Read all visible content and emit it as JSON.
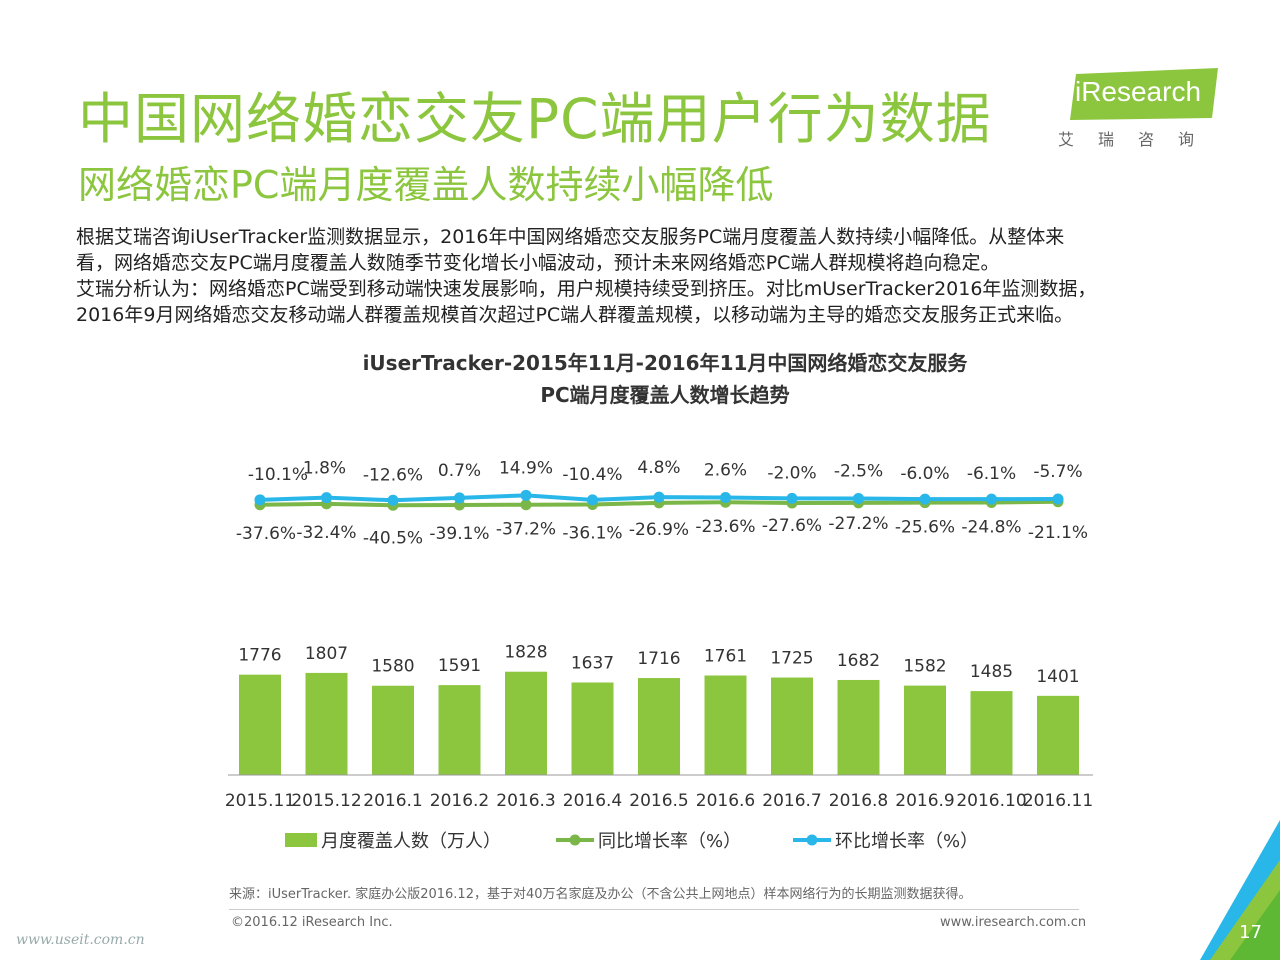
{
  "header": {
    "title": "中国网络婚恋交友PC端用户行为数据",
    "subtitle": "网络婚恋PC端月度覆盖人数持续小幅降低"
  },
  "logo": {
    "text": "iResearch",
    "cn": "艾瑞咨询"
  },
  "paragraph": [
    "根据艾瑞咨询iUserTracker监测数据显示，2016年中国网络婚恋交友服务PC端月度覆盖人数持续小幅降低。从整体来",
    "看，网络婚恋交友PC端月度覆盖人数随季节变化增长小幅波动，预计未来网络婚恋PC端人群规模将趋向稳定。",
    "艾瑞分析认为：网络婚恋PC端受到移动端快速发展影响，用户规模持续受到挤压。对比mUserTracker2016年监测数据，",
    "2016年9月网络婚恋交友移动端人群覆盖规模首次超过PC端人群覆盖规模，以移动端为主导的婚恋交友服务正式来临。"
  ],
  "colors": {
    "accent": "#8cc63f",
    "bar": "#8cc63f",
    "yoy_line": "#7ab648",
    "mom_line": "#29b6e8",
    "corner_blue": "#29b6e8"
  },
  "chart_data": {
    "type": "bar",
    "title_line1": "iUserTracker-2015年11月-2016年11月中国网络婚恋交友服务",
    "title_line2": "PC端月度覆盖人数增长趋势",
    "categories": [
      "2015.11",
      "2015.12",
      "2016.1",
      "2016.2",
      "2016.3",
      "2016.4",
      "2016.5",
      "2016.6",
      "2016.7",
      "2016.8",
      "2016.9",
      "2016.10",
      "2016.11"
    ],
    "series": [
      {
        "name": "月度覆盖人数（万人）",
        "type": "bar",
        "values": [
          1776,
          1807,
          1580,
          1591,
          1828,
          1637,
          1716,
          1761,
          1725,
          1682,
          1582,
          1485,
          1401
        ],
        "labels": [
          "1776",
          "1807",
          "1580",
          "1591",
          "1828",
          "1637",
          "1716",
          "1761",
          "1725",
          "1682",
          "1582",
          "1485",
          "1401"
        ]
      },
      {
        "name": "同比增长率（%）",
        "type": "line",
        "values": [
          -37.6,
          -32.4,
          -40.5,
          -39.1,
          -37.2,
          -36.1,
          -26.9,
          -23.6,
          -27.6,
          -27.2,
          -25.6,
          -24.8,
          -21.1
        ],
        "labels": [
          "-37.6%",
          "-32.4%",
          "-40.5%",
          "-39.1%",
          "-37.2%",
          "-36.1%",
          "-26.9%",
          "-23.6%",
          "-27.6%",
          "-27.2%",
          "-25.6%",
          "-24.8%",
          "-21.1%"
        ]
      },
      {
        "name": "环比增长率（%）",
        "type": "line",
        "values": [
          -10.1,
          1.8,
          -12.6,
          0.7,
          14.9,
          -10.4,
          4.8,
          2.6,
          -2.0,
          -2.5,
          -6.0,
          -6.1,
          -5.7
        ],
        "labels": [
          "-10.1%",
          "1.8%",
          "-12.6%",
          "0.7%",
          "14.9%",
          "-10.4%",
          "4.8%",
          "2.6%",
          "-2.0%",
          "-2.5%",
          "-6.0%",
          "-6.1%",
          "-5.7%"
        ]
      }
    ],
    "grid": false,
    "legend_position": "bottom"
  },
  "footer": {
    "source": "来源：iUserTracker. 家庭办公版2016.12，基于对40万名家庭及办公（不含公共上网地点）样本网络行为的长期监测数据获得。",
    "copyright": "©2016.12 iResearch Inc.",
    "website": "www.iresearch.com.cn",
    "page_number": "17",
    "watermark": "www.useit.com.cn"
  }
}
